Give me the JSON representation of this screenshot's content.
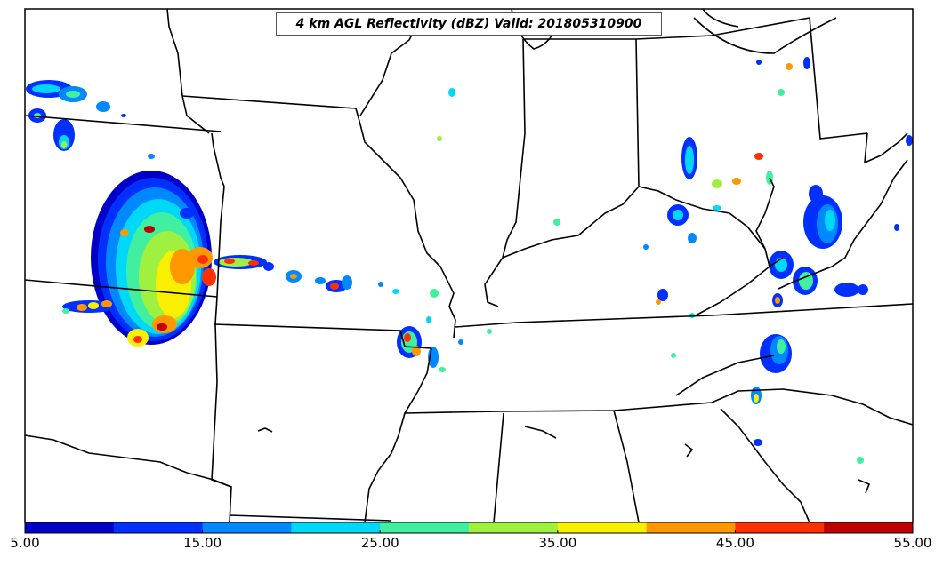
{
  "map": {
    "title": "4 km AGL Reflectivity (dBZ) Valid: 201805310900",
    "field": "reflectivity",
    "units": "dBZ"
  },
  "colorbar": {
    "min": 5,
    "max": 55,
    "step": 5,
    "colors": [
      "#0000c8",
      "#0030ff",
      "#0088ff",
      "#00d8f8",
      "#40f0a0",
      "#a0f040",
      "#f8f000",
      "#ff9800",
      "#ff3000",
      "#c00000"
    ],
    "tick_labels": [
      "5.00",
      "15.00",
      "25.00",
      "35.00",
      "45.00",
      "55.00"
    ],
    "tick_values": [
      5,
      15,
      25,
      35,
      45,
      55
    ]
  }
}
